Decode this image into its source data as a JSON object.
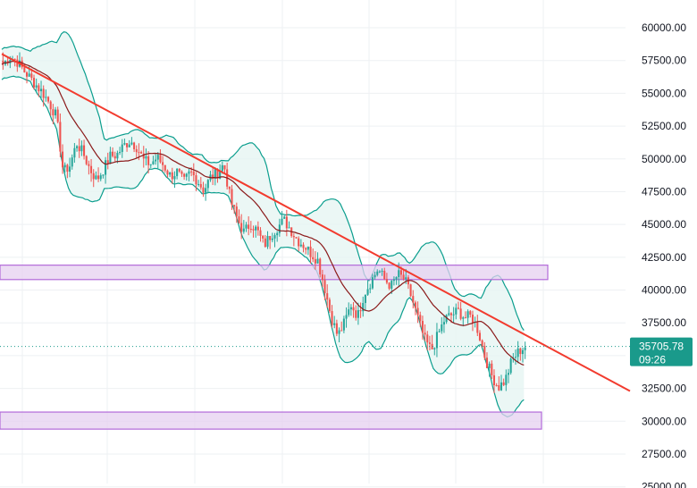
{
  "chart_data": {
    "type": "candlestick",
    "title": "",
    "xlabel": "",
    "ylabel": "",
    "ylim": [
      25000,
      62000
    ],
    "y_ticks": [
      "60000.00",
      "57500.00",
      "55000.00",
      "52500.00",
      "50000.00",
      "47500.00",
      "45000.00",
      "42500.00",
      "40000.00",
      "37500.00",
      "35000.00",
      "32500.00",
      "30000.00",
      "27500.00",
      "25000.00"
    ],
    "y_tick_values": [
      60000,
      57500,
      55000,
      52500,
      50000,
      47500,
      45000,
      42500,
      40000,
      37500,
      35000,
      32500,
      30000,
      27500,
      25000
    ],
    "current_price": {
      "value": 35705.78,
      "label": "35705.78",
      "countdown": "09:26"
    },
    "indicators": [
      "Bollinger Bands",
      "Moving Average"
    ],
    "grid": true,
    "zones": [
      {
        "name": "resistance-zone",
        "y_low": 40800,
        "y_high": 41900
      },
      {
        "name": "support-zone",
        "y_low": 29400,
        "y_high": 30700
      }
    ],
    "trendline": {
      "from": {
        "bar": 0,
        "y": 58000
      },
      "to": {
        "bar": 220,
        "y": 32300
      }
    },
    "bar_count": 220,
    "candles_approx_close": [
      57200,
      57800,
      57500,
      56800,
      56200,
      55600,
      55000,
      54200,
      53200,
      49000,
      49500,
      51200,
      50400,
      49200,
      48400,
      49200,
      50200,
      50300,
      51000,
      51400,
      50900,
      49900,
      49600,
      50100,
      49500,
      48700,
      49000,
      48200,
      49000,
      48400,
      47600,
      48600,
      48900,
      49600,
      46800,
      45400,
      44400,
      45100,
      44500,
      43400,
      44200,
      44800,
      45300,
      44600,
      43800,
      43400,
      42800,
      42300,
      40300,
      38000,
      36500,
      37500,
      38900,
      38000,
      39800,
      40700,
      41600,
      40800,
      40300,
      41200,
      40800,
      39500,
      37800,
      36200,
      35400,
      36600,
      37800,
      38100,
      38400,
      37900,
      38000,
      36900,
      34900,
      33500,
      32600,
      33100,
      34600,
      35300,
      35700
    ],
    "colors": {
      "up": "#26a69a",
      "down": "#ef5350",
      "band": "#0b9e8e",
      "band_fill": "#e6f5f2",
      "ma": "#8b1a1a",
      "trendline": "#f23b2e",
      "zone_fill": "#e6d0f0",
      "zone_stroke": "#b26ad9",
      "price_badge": "#1a9a8b"
    }
  }
}
